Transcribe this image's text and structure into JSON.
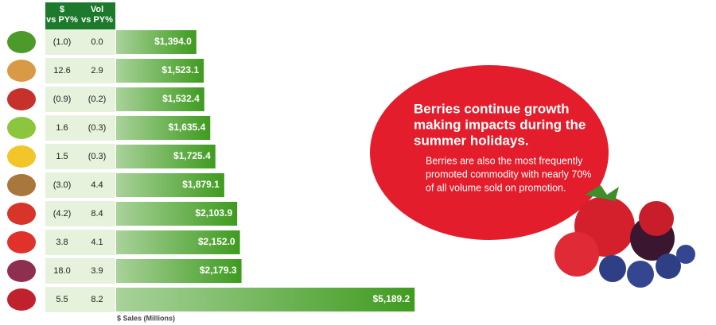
{
  "chart_data": {
    "type": "bar",
    "orientation": "horizontal",
    "categories": [
      null,
      null,
      null,
      null,
      null,
      null,
      null,
      null,
      null,
      null
    ],
    "values": [
      1394.0,
      1523.1,
      1532.4,
      1635.4,
      1725.4,
      1879.1,
      2103.9,
      2152.0,
      2179.3,
      5189.2
    ],
    "value_labels": [
      "$1,394.0",
      "$1,523.1",
      "$1,532.4",
      "$1,635.4",
      "$1,725.4",
      "$1,879.1",
      "$2,103.9",
      "$2,152.0",
      "$2,179.3",
      "$5,189.2"
    ],
    "color": "#3f9b1f",
    "xlim": [
      0,
      5200
    ],
    "xlabel": "$ Sales (Millions)",
    "table": {
      "columns": [
        {
          "header": [
            "$",
            "vs PY%"
          ],
          "cells": [
            "(1.0)",
            "12.6",
            "(0.9)",
            "1.6",
            "1.5",
            "(3.0)",
            "(4.2)",
            "3.8",
            "18.0",
            "5.5"
          ]
        },
        {
          "header": [
            "Vol",
            "vs PY%"
          ],
          "cells": [
            "0.0",
            "2.9",
            "(0.2)",
            "(0.3)",
            "(0.3)",
            "4.4",
            "8.4",
            "4.1",
            "3.9",
            "8.2"
          ]
        }
      ]
    },
    "callout": {
      "title": [
        "Berries continue growth",
        "making impacts during the",
        "summer holidays."
      ],
      "body": [
        "Berries are also the most frequently",
        "promoted commodity with nearly 70%",
        "of all volume sold on promotion."
      ]
    }
  }
}
